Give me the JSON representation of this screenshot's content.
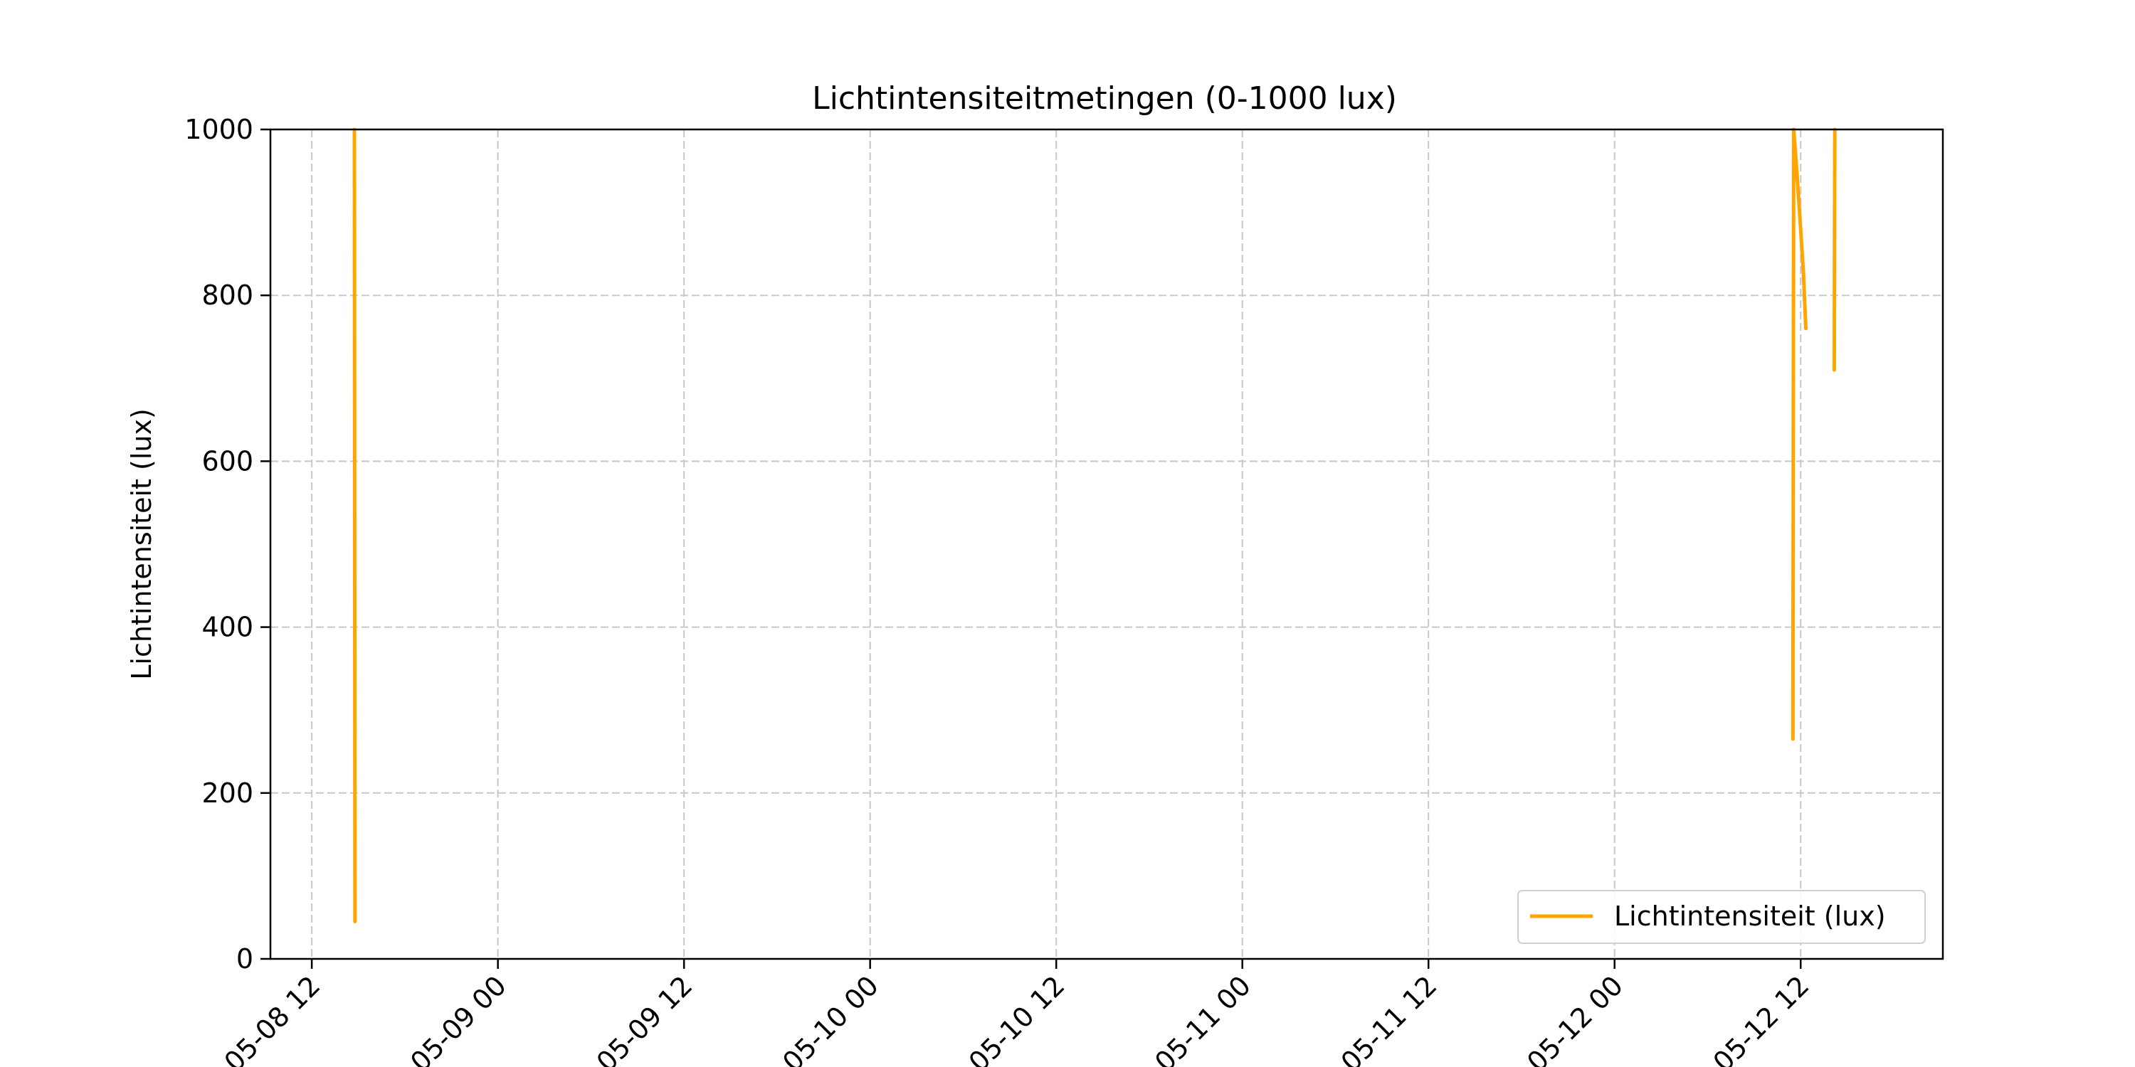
{
  "chart_data": {
    "type": "line",
    "title": "Lichtintensiteitmetingen (0-1000 lux)",
    "xlabel": "",
    "ylabel": "Lichtintensiteit (lux)",
    "ylim": [
      0,
      1000
    ],
    "yticks": [
      0,
      200,
      400,
      600,
      800,
      1000
    ],
    "xlim": [
      "2025-05-08 09:20",
      "2025-05-12 21:10"
    ],
    "xticks": [
      {
        "t": "2025-05-08 12:00",
        "label": "05-08 12"
      },
      {
        "t": "2025-05-09 00:00",
        "label": "05-09 00"
      },
      {
        "t": "2025-05-09 12:00",
        "label": "05-09 12"
      },
      {
        "t": "2025-05-10 00:00",
        "label": "05-10 00"
      },
      {
        "t": "2025-05-10 12:00",
        "label": "05-10 12"
      },
      {
        "t": "2025-05-11 00:00",
        "label": "05-11 00"
      },
      {
        "t": "2025-05-11 12:00",
        "label": "05-11 12"
      },
      {
        "t": "2025-05-12 00:00",
        "label": "05-12 00"
      },
      {
        "t": "2025-05-12 12:00",
        "label": "05-12 12"
      }
    ],
    "grid": true,
    "legend_position": "bottom-right",
    "series": [
      {
        "name": "Lichtintensiteit (lux)",
        "color": "#ffa500",
        "segments": [
          [
            {
              "t": "2025-05-08 14:45",
              "y": 1000
            },
            {
              "t": "2025-05-08 14:47",
              "y": 45
            }
          ],
          [
            {
              "t": "2025-05-12 11:30",
              "y": 265
            },
            {
              "t": "2025-05-12 11:33",
              "y": 1000
            },
            {
              "t": "2025-05-12 11:45",
              "y": 950
            },
            {
              "t": "2025-05-12 12:00",
              "y": 880
            },
            {
              "t": "2025-05-12 12:10",
              "y": 830
            },
            {
              "t": "2025-05-12 12:20",
              "y": 760
            }
          ],
          [
            {
              "t": "2025-05-12 14:10",
              "y": 710
            },
            {
              "t": "2025-05-12 14:12",
              "y": 1000
            }
          ]
        ]
      }
    ]
  }
}
